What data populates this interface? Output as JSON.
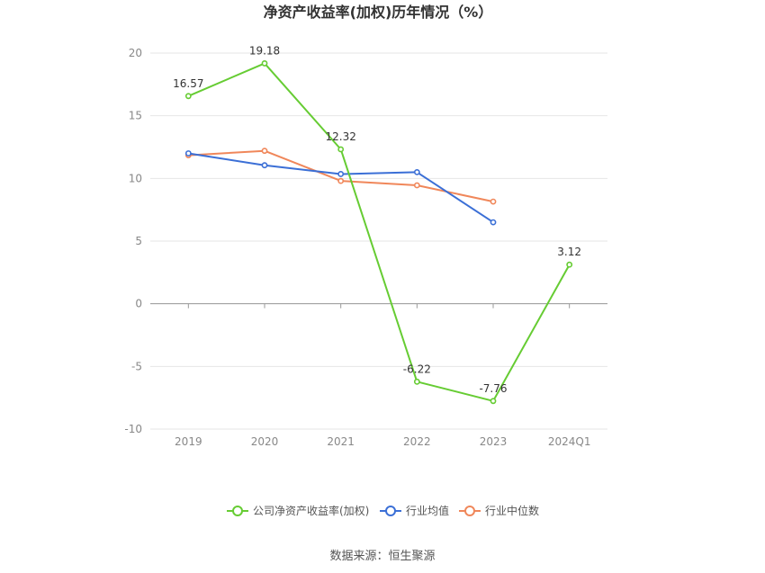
{
  "chart_data": {
    "type": "line",
    "title": "净资产收益率(加权)历年情况（%）",
    "xlabel": "",
    "ylabel": "",
    "categories": [
      "2019",
      "2020",
      "2021",
      "2022",
      "2023",
      "2024Q1"
    ],
    "ylim": [
      -10,
      20
    ],
    "yticks": [
      20,
      15,
      10,
      5,
      0,
      -5,
      -10
    ],
    "grid": true,
    "legend_position": "bottom",
    "series": [
      {
        "name": "公司净资产收益率(加权)",
        "color": "#66cc33",
        "values": [
          16.57,
          19.18,
          12.32,
          -6.22,
          -7.76,
          3.12
        ],
        "show_labels": true
      },
      {
        "name": "行业均值",
        "color": "#3b6fd6",
        "values": [
          12.0,
          11.05,
          10.35,
          10.5,
          6.5,
          null
        ],
        "show_labels": false
      },
      {
        "name": "行业中位数",
        "color": "#f0875a",
        "values": [
          11.85,
          12.2,
          9.8,
          9.45,
          8.15,
          null
        ],
        "show_labels": false
      }
    ],
    "data_labels": [
      "16.57",
      "19.18",
      "12.32",
      "-6.22",
      "-7.76",
      "3.12"
    ],
    "source": "数据来源：恒生聚源"
  }
}
